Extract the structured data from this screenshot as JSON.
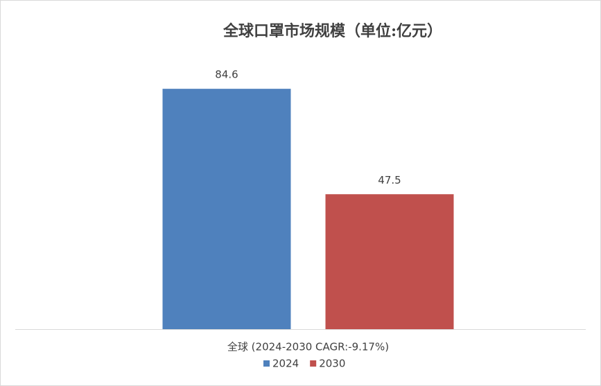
{
  "chart_data": {
    "type": "bar",
    "title": "全球口罩市场规模（单位:亿元）",
    "categories": [
      "全球 (2024-2030 CAGR:-9.17%)"
    ],
    "series": [
      {
        "name": "2024",
        "color": "#4f81bd",
        "values": [
          84.6
        ]
      },
      {
        "name": "2030",
        "color": "#c0504d",
        "values": [
          47.5
        ]
      }
    ],
    "legend": "bottom"
  }
}
